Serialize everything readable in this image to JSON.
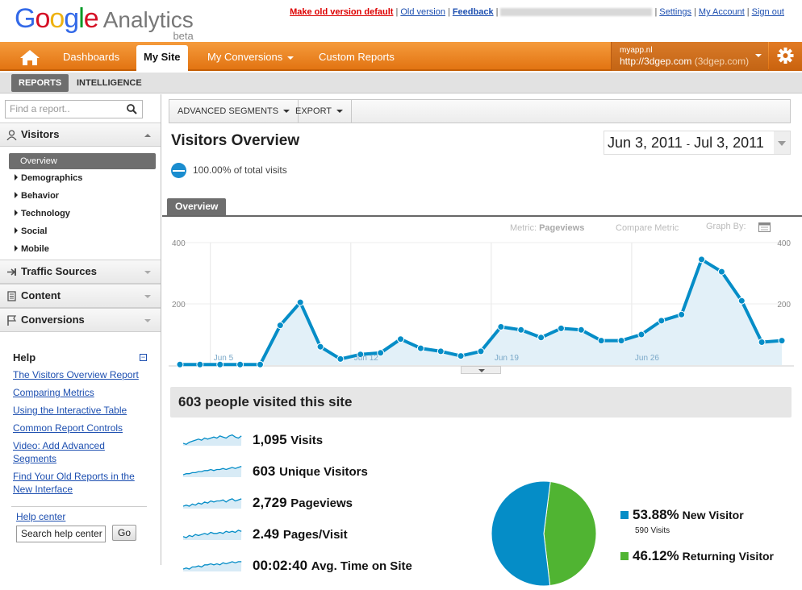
{
  "app": {
    "logo_google": "Google",
    "logo_analytics": "Analytics",
    "logo_beta": "beta"
  },
  "toplinks": {
    "make_old": "Make old version default",
    "old": "Old version",
    "feedback": "Feedback",
    "settings": "Settings",
    "my_account": "My Account",
    "sign_out": "Sign out"
  },
  "nav": {
    "items": [
      "Dashboards",
      "My Site",
      "My Conversions",
      "Custom Reports"
    ],
    "active": "My Site"
  },
  "account": {
    "name": "myapp.nl",
    "url": "http://3dgep.com",
    "profile": "(3dgep.com)"
  },
  "subnav": {
    "reports": "REPORTS",
    "intelligence": "INTELLIGENCE"
  },
  "sidebar": {
    "search_placeholder": "Find a report..",
    "sections": [
      "Visitors",
      "Traffic Sources",
      "Content",
      "Conversions"
    ],
    "visitor_items": [
      "Overview",
      "Demographics",
      "Behavior",
      "Technology",
      "Social",
      "Mobile"
    ]
  },
  "help": {
    "title": "Help",
    "links": [
      "The Visitors Overview Report",
      "Comparing Metrics",
      "Using the Interactive Table",
      "Common Report Controls",
      "Video: Add Advanced Segments",
      "Find Your Old Reports in the New Interface"
    ],
    "help_center": "Help center",
    "search_value": "Search help center",
    "go": "Go"
  },
  "toolbar": {
    "segments": "ADVANCED SEGMENTS",
    "export": "EXPORT"
  },
  "page": {
    "title": "Visitors Overview",
    "date_start": "Jun 3, 2011",
    "date_sep": "-",
    "date_end": "Jul 3, 2011",
    "percent": "100.00% of total visits",
    "tab": "Overview"
  },
  "metric_bar": {
    "metric_label": "Metric:",
    "metric_value": "Pageviews",
    "compare": "Compare Metric",
    "graph_by": "Graph By:"
  },
  "chart_data": {
    "type": "area",
    "ylim": [
      0,
      400
    ],
    "ticks_y": [
      "200",
      "400"
    ],
    "x_labels": [
      "Jun 5",
      "Jun 12",
      "Jun 19",
      "Jun 26"
    ],
    "x_label_indices": [
      2,
      9,
      16,
      23
    ],
    "series": [
      {
        "name": "Pageviews",
        "color": "#058dc7",
        "values": [
          2,
          2,
          2,
          2,
          2,
          130,
          205,
          60,
          20,
          35,
          40,
          85,
          55,
          45,
          30,
          45,
          125,
          115,
          90,
          120,
          115,
          80,
          80,
          100,
          145,
          165,
          345,
          305,
          210,
          75,
          80
        ]
      }
    ]
  },
  "summary": {
    "title": "603 people visited this site"
  },
  "stats": [
    {
      "value": "1,095",
      "label": "Visits"
    },
    {
      "value": "603",
      "label": "Unique Visitors"
    },
    {
      "value": "2,729",
      "label": "Pageviews"
    },
    {
      "value": "2.49",
      "label": "Pages/Visit"
    },
    {
      "value": "00:02:40",
      "label": "Avg. Time on Site"
    }
  ],
  "pie": {
    "slices": [
      {
        "label": "New Visitor",
        "percent": "53.88%",
        "value": 53.88,
        "visits": "590 Visits",
        "color": "#058dc7"
      },
      {
        "label": "Returning Visitor",
        "percent": "46.12%",
        "value": 46.12,
        "color": "#50b432"
      }
    ]
  }
}
